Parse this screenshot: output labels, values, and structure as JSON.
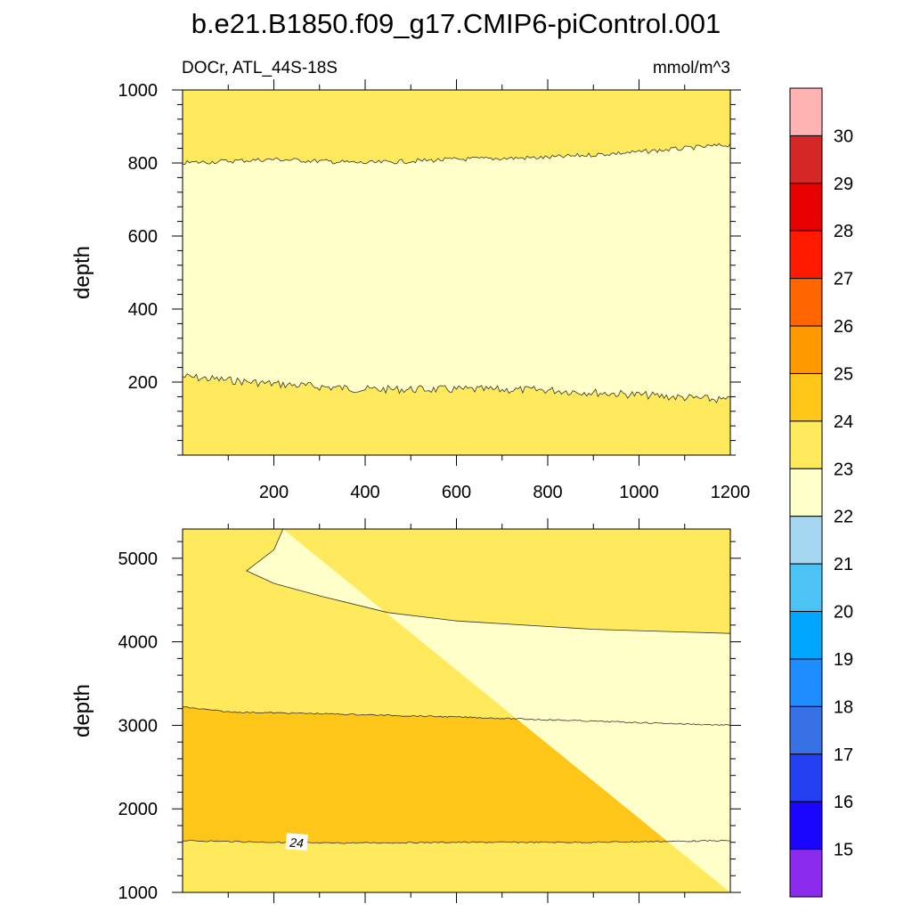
{
  "page": {
    "title": "b.e21.B1850.f09_g17.CMIP6-piControl.001",
    "left_label": "DOCr, ATL_44S-18S",
    "right_label": "mmol/m^3"
  },
  "chart_data": [
    {
      "type": "contour",
      "panel": "top",
      "ylabel": "depth",
      "xlabel": "",
      "xlim": [
        0,
        1200
      ],
      "ylim": [
        1000,
        0
      ],
      "x_ticks": [
        200,
        400,
        600,
        800,
        1000,
        1200
      ],
      "y_ticks": [
        200,
        400,
        600,
        800,
        1000
      ],
      "contour_boundaries": [
        {
          "level": 23,
          "points": [
            [
              0,
              215
            ],
            [
              200,
              195
            ],
            [
              400,
              180
            ],
            [
              600,
              180
            ],
            [
              800,
              178
            ],
            [
              1000,
              165
            ],
            [
              1200,
              150
            ]
          ]
        },
        {
          "level": 23,
          "points": [
            [
              0,
              800
            ],
            [
              200,
              810
            ],
            [
              400,
              800
            ],
            [
              600,
              810
            ],
            [
              800,
              815
            ],
            [
              1000,
              830
            ],
            [
              1200,
              850
            ]
          ]
        }
      ],
      "fill_bands": [
        {
          "range": [
            23,
            24
          ],
          "region": "above upper contour"
        },
        {
          "range": [
            22,
            23
          ],
          "region": "between contours"
        },
        {
          "range": [
            23,
            24
          ],
          "region": "below lower contour"
        }
      ]
    },
    {
      "type": "contour",
      "panel": "bottom",
      "ylabel": "depth",
      "xlabel": "",
      "xlim": [
        0,
        1200
      ],
      "ylim": [
        5350,
        1000
      ],
      "x_ticks": [
        200,
        400,
        600,
        800,
        1000,
        1200
      ],
      "y_ticks": [
        1000,
        2000,
        3000,
        4000,
        5000
      ],
      "line_labels": [
        "24"
      ],
      "contour_boundaries": [
        {
          "level": 24,
          "points": [
            [
              0,
              1620
            ],
            [
              300,
              1590
            ],
            [
              600,
              1600
            ],
            [
              900,
              1600
            ],
            [
              1200,
              1620
            ]
          ]
        },
        {
          "level": 24,
          "points": [
            [
              0,
              3220
            ],
            [
              100,
              3160
            ],
            [
              300,
              3140
            ],
            [
              600,
              3100
            ],
            [
              900,
              3050
            ],
            [
              1200,
              3000
            ]
          ]
        },
        {
          "level": 23,
          "points": [
            [
              1200,
              4100
            ],
            [
              900,
              4150
            ],
            [
              600,
              4250
            ],
            [
              450,
              4350
            ],
            [
              300,
              4550
            ],
            [
              200,
              4700
            ],
            [
              140,
              4850
            ],
            [
              200,
              5100
            ],
            [
              220,
              5350
            ]
          ]
        }
      ],
      "fill_bands": [
        {
          "range": [
            23,
            24
          ],
          "region": "top band"
        },
        {
          "range": [
            24,
            25
          ],
          "region": "middle band"
        },
        {
          "range": [
            23,
            24
          ],
          "region": "lower band"
        },
        {
          "range": [
            22,
            23
          ],
          "region": "bottom-right region"
        }
      ]
    }
  ],
  "colorbar": {
    "labels": [
      "15",
      "16",
      "17",
      "18",
      "19",
      "20",
      "21",
      "22",
      "23",
      "24",
      "25",
      "26",
      "27",
      "28",
      "29",
      "30"
    ],
    "colors_top_to_bottom": [
      "#ffb3b3",
      "#d62727",
      "#e60000",
      "#ff1a00",
      "#ff6600",
      "#ff9900",
      "#ffc61a",
      "#ffe95c",
      "#ffffc9",
      "#a6d7f0",
      "#4dc2f5",
      "#00a6ff",
      "#1f8cff",
      "#3870e6",
      "#2340f0",
      "#1a05ff",
      "#8a2bed"
    ]
  },
  "colors": {
    "band_22_23": "#ffffc9",
    "band_23_24": "#ffe95c",
    "band_24_25": "#ffc61a"
  }
}
